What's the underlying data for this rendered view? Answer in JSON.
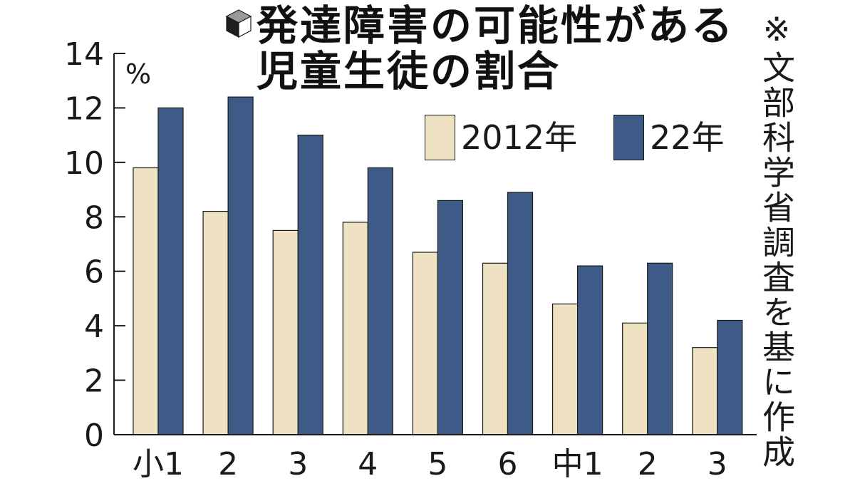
{
  "colors": {
    "series_2012": "#efe2c2",
    "series_2022": "#3d5b86",
    "outline": "#1a1a1a",
    "text": "#1a1a1a",
    "background": "#ffffff"
  },
  "title_icon": "cube-icon",
  "chart_data": {
    "type": "bar",
    "title_lines": [
      "発達障害の可能性がある",
      "児童生徒の割合"
    ],
    "y_unit": "%",
    "ylim": [
      0,
      14
    ],
    "yticks": [
      0,
      2,
      4,
      6,
      8,
      10,
      12,
      14
    ],
    "categories": [
      "小1",
      "2",
      "3",
      "4",
      "5",
      "6",
      "中1",
      "2",
      "3"
    ],
    "series": [
      {
        "name": "2012年",
        "values": [
          9.8,
          8.2,
          7.5,
          7.8,
          6.7,
          6.3,
          4.8,
          4.1,
          3.2
        ]
      },
      {
        "name": "22年",
        "values": [
          12.0,
          12.4,
          11.0,
          9.8,
          8.6,
          8.9,
          6.2,
          6.3,
          4.2
        ]
      }
    ],
    "legend": "top-right",
    "grid": false,
    "source_note": "※文部科学省調査を基に作成"
  }
}
